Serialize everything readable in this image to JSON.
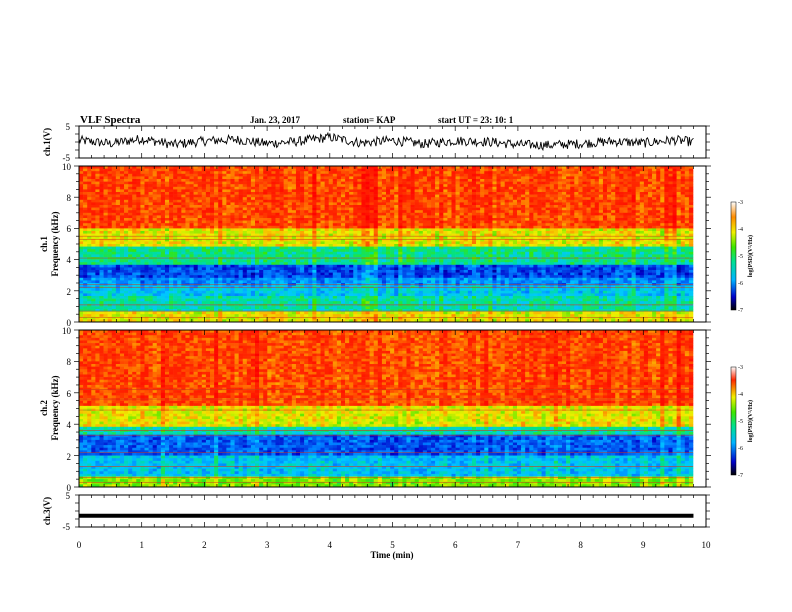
{
  "header": {
    "title": "VLF Spectra",
    "date": "Jan. 23, 2017",
    "station": "station= KAP",
    "start": "start UT = 23: 10: 1"
  },
  "chart_data": [
    {
      "type": "line",
      "ylabel": "ch.1(V)",
      "ylim": [
        -5,
        5
      ],
      "yticks": [
        "5",
        "-5"
      ],
      "xlim": [
        0,
        10
      ],
      "description_of_signal": "noisy trace around 0 V, approx -2 to +3 V",
      "x": [
        0,
        0.5,
        1,
        1.5,
        2,
        2.5,
        3,
        3.5,
        4,
        4.5,
        5,
        5.5,
        6,
        6.5,
        7,
        7.5,
        8,
        8.5,
        9,
        9.5,
        9.8
      ],
      "values": [
        0.5,
        -0.5,
        1.0,
        -0.8,
        0.3,
        0.8,
        -0.5,
        0.2,
        1.5,
        -0.3,
        0.5,
        -0.6,
        0.4,
        0.1,
        -0.8,
        -1.0,
        -0.5,
        0.2,
        -0.3,
        0.6,
        0.0
      ]
    },
    {
      "type": "heatmap",
      "ylabel_line1": "ch.1",
      "ylabel_line2": "Frequency (kHz)",
      "ylim": [
        0,
        10
      ],
      "yticks": [
        "0",
        "2",
        "4",
        "6",
        "8",
        "10"
      ],
      "xlim": [
        0,
        10
      ],
      "colorbar": {
        "label": "log(PSD)(V²/Hz)",
        "range": [
          -7,
          -3
        ],
        "ticks": [
          "-3",
          "-4",
          "-5",
          "-6",
          "-7"
        ]
      },
      "bands": [
        {
          "from": 0,
          "to": 0.7,
          "value": -4.3
        },
        {
          "from": 0.7,
          "to": 1.6,
          "value": -5.3
        },
        {
          "from": 1.6,
          "to": 2.4,
          "value": -5.6
        },
        {
          "from": 2.4,
          "to": 2.9,
          "value": -5.9
        },
        {
          "from": 2.9,
          "to": 3.6,
          "value": -6.2
        },
        {
          "from": 3.6,
          "to": 4.9,
          "value": -5.2
        },
        {
          "from": 4.9,
          "to": 6.0,
          "value": -4.3
        },
        {
          "from": 6.0,
          "to": 10.0,
          "value": -3.6
        }
      ]
    },
    {
      "type": "heatmap",
      "ylabel_line1": "ch.2",
      "ylabel_line2": "Frequency (kHz)",
      "ylim": [
        0,
        10
      ],
      "yticks": [
        "0",
        "2",
        "4",
        "6",
        "8",
        "10"
      ],
      "xlim": [
        0,
        10
      ],
      "colorbar": {
        "label": "log(PSD)(V²/Hz)",
        "range": [
          -7,
          -3
        ],
        "ticks": [
          "-3",
          "-4",
          "-5",
          "-6",
          "-7"
        ]
      },
      "bands": [
        {
          "from": 0,
          "to": 0.6,
          "value": -4.6
        },
        {
          "from": 0.6,
          "to": 2.0,
          "value": -5.6
        },
        {
          "from": 2.0,
          "to": 3.3,
          "value": -6.1
        },
        {
          "from": 3.3,
          "to": 3.8,
          "value": -5.3
        },
        {
          "from": 3.8,
          "to": 5.2,
          "value": -4.3
        },
        {
          "from": 5.2,
          "to": 10.0,
          "value": -3.6
        }
      ]
    },
    {
      "type": "line",
      "ylabel": "ch.3(V)",
      "ylim": [
        -5,
        5
      ],
      "yticks": [
        "5",
        "-5"
      ],
      "xlim": [
        0,
        10
      ],
      "xlabel": "Time (min)",
      "xticks": [
        "0",
        "1",
        "2",
        "3",
        "4",
        "5",
        "6",
        "7",
        "8",
        "9",
        "10"
      ],
      "x": [
        0,
        9.8
      ],
      "values": [
        -1.5,
        -1.5
      ]
    }
  ]
}
